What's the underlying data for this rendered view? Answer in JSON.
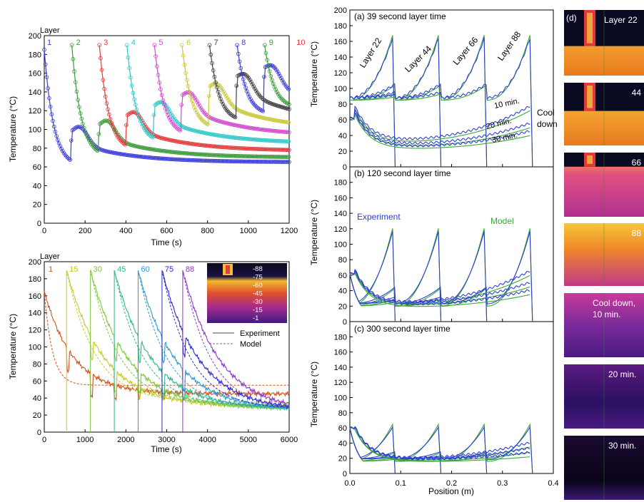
{
  "colors": {
    "model": "#3aa83a",
    "experiment": "#2f3fd0",
    "layers10": [
      "#3b3bd8",
      "#3a9a3a",
      "#e23a3a",
      "#2ec8c8",
      "#d04ad0",
      "#c8c83a",
      "#404040",
      "#3b3bd8",
      "#3a9a3a",
      "#e23a3a"
    ],
    "bottom_series": [
      "#d0501a",
      "#c8c82a",
      "#7ac83a",
      "#2fb88a",
      "#2f9ad0",
      "#2a2ad0",
      "#8a3ac8"
    ]
  },
  "panel_top_left": {
    "legend_title": "Layer",
    "xlabel": "Time (s)",
    "ylabel": "Temperature (°C)",
    "xticks": [
      "0",
      "200",
      "400",
      "600",
      "800",
      "1000",
      "1200"
    ],
    "yticks": [
      "0",
      "20",
      "40",
      "60",
      "80",
      "100",
      "120",
      "140",
      "160",
      "180",
      "200"
    ],
    "layer_labels": [
      "1",
      "2",
      "3",
      "4",
      "5",
      "6",
      "7",
      "8",
      "9",
      "10"
    ]
  },
  "panel_bottom_left": {
    "legend_title": "Layer",
    "xlabel": "Time (s)",
    "ylabel": "Temperature (°C)",
    "xticks": [
      "0",
      "1000",
      "2000",
      "3000",
      "4000",
      "5000",
      "6000"
    ],
    "yticks": [
      "0",
      "20",
      "40",
      "60",
      "80",
      "100",
      "120",
      "140",
      "160",
      "180",
      "200"
    ],
    "layer_labels": [
      "1",
      "15",
      "30",
      "45",
      "60",
      "75",
      "88"
    ],
    "colorbar_labels": [
      "88",
      "75",
      "60",
      "45",
      "30",
      "15",
      "1"
    ],
    "legend": {
      "experiment": "Experiment",
      "model": "Model"
    }
  },
  "panel_right": {
    "titles": [
      "(a) 39 second layer time",
      "(b) 120 second layer time",
      "(c) 300 second layer time"
    ],
    "ylabel": "Temperature (°C)",
    "xlabel": "Position (m)",
    "xticks": [
      "0.0",
      "0.1",
      "0.2",
      "0.3",
      "0.4"
    ],
    "yticks": [
      "0",
      "20",
      "40",
      "60",
      "80",
      "100",
      "120",
      "140",
      "160",
      "180"
    ],
    "ytick_top": "200",
    "layer_annotations": [
      "Layer 22",
      "Layer 44",
      "Layer 66",
      "Layer 88"
    ],
    "cooldown_labels": [
      "10 min.",
      "20 min.",
      "30 min."
    ],
    "cool_down": "Cool down",
    "experiment_label": "Experiment",
    "model_label": "Model"
  },
  "panel_d": {
    "letter": "(d)",
    "tiles": [
      "Layer 22",
      "44",
      "66",
      "88",
      "Cool down,\n10 min.",
      "20 min.",
      "30 min."
    ]
  },
  "chart_data": [
    {
      "type": "line",
      "xlabel": "Time (s)",
      "ylabel": "Temperature (°C)",
      "xlim": [
        0,
        1200
      ],
      "ylim": [
        0,
        200
      ],
      "legend_title": "Layer",
      "series": [
        {
          "name": "1",
          "deposit_time": 0
        },
        {
          "name": "2",
          "deposit_time": 135
        },
        {
          "name": "3",
          "deposit_time": 270
        },
        {
          "name": "4",
          "deposit_time": 405
        },
        {
          "name": "5",
          "deposit_time": 540
        },
        {
          "name": "6",
          "deposit_time": 675
        },
        {
          "name": "7",
          "deposit_time": 810
        },
        {
          "name": "8",
          "deposit_time": 945
        },
        {
          "name": "9",
          "deposit_time": 1080
        },
        {
          "name": "10",
          "deposit_time": 1215
        }
      ],
      "peak_temperature": 190,
      "final_values_at_1200s": [
        65,
        70,
        77,
        85,
        93,
        100,
        108,
        115,
        122,
        128
      ]
    },
    {
      "type": "line",
      "xlabel": "Time (s)",
      "ylabel": "Temperature (°C)",
      "xlim": [
        0,
        6000
      ],
      "ylim": [
        0,
        200
      ],
      "legend_title": "Layer",
      "series": [
        {
          "name": "1",
          "start": 0,
          "peak": 165
        },
        {
          "name": "15",
          "start": 546,
          "peak": 190
        },
        {
          "name": "30",
          "start": 1131,
          "peak": 190
        },
        {
          "name": "45",
          "start": 1716,
          "peak": 190
        },
        {
          "name": "60",
          "start": 2300,
          "peak": 190
        },
        {
          "name": "75",
          "start": 2885,
          "peak": 190
        },
        {
          "name": "88",
          "start": 3392,
          "peak": 190
        }
      ],
      "experiment_final_values_at_6000s": [
        45,
        30,
        28,
        27,
        26,
        25,
        24
      ],
      "model_final_values_at_6000s": [
        55,
        35,
        32,
        30,
        28,
        27,
        25
      ]
    },
    {
      "type": "line",
      "title": "(a) 39 second layer time",
      "xlabel": "Position (m)",
      "ylabel": "Temperature (°C)",
      "xlim": [
        0,
        0.4
      ],
      "ylim": [
        0,
        200
      ],
      "layer_peaks": [
        {
          "layer": "Layer 22",
          "x": 0.09,
          "y": 170
        },
        {
          "layer": "Layer 44",
          "x": 0.18,
          "y": 170
        },
        {
          "layer": "Layer 66",
          "x": 0.27,
          "y": 170
        },
        {
          "layer": "Layer 88",
          "x": 0.355,
          "y": 170
        }
      ],
      "cooldown": [
        {
          "label": "10 min.",
          "end_y": 72
        },
        {
          "label": "20 min.",
          "end_y": 50
        },
        {
          "label": "30 min.",
          "end_y": 40
        }
      ]
    },
    {
      "type": "line",
      "title": "(b) 120 second layer time",
      "xlabel": "Position (m)",
      "ylabel": "Temperature (°C)",
      "xlim": [
        0,
        0.4
      ],
      "ylim": [
        0,
        200
      ],
      "layer_peaks": [
        {
          "x": 0.08,
          "y": 123
        },
        {
          "x": 0.17,
          "y": 123
        },
        {
          "x": 0.26,
          "y": 123
        },
        {
          "x": 0.355,
          "y": 123
        }
      ]
    },
    {
      "type": "line",
      "title": "(c) 300 second layer time",
      "xlabel": "Position (m)",
      "ylabel": "Temperature (°C)",
      "xlim": [
        0,
        0.4
      ],
      "ylim": [
        0,
        200
      ],
      "layer_peaks": [
        {
          "x": 0.08,
          "y": 66
        },
        {
          "x": 0.17,
          "y": 66
        },
        {
          "x": 0.26,
          "y": 66
        },
        {
          "x": 0.355,
          "y": 66
        }
      ]
    }
  ]
}
